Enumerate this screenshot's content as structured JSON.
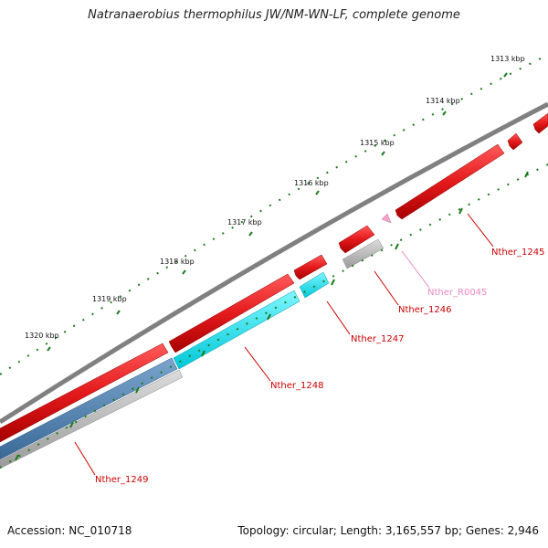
{
  "title": "Natranaerobius thermophilus JW/NM-WN-LF, complete genome",
  "footer": {
    "accession": "Accession: NC_010718",
    "summary": "Topology: circular; Length: 3,165,557 bp; Genes: 2,946"
  },
  "colors": {
    "backbone": "#808080",
    "gene_forward": "#e41a1c",
    "gene_cds": "#00e5ee",
    "gene_steel": "#4f81b0",
    "gene_gray": "#b8b8b8",
    "rna": "#f4a6c8",
    "tick_major": "#1e7b1e",
    "label_red": "#cc0000",
    "label_pink": "#e78ac3"
  },
  "ticks": [
    {
      "label": "1313 kbp"
    },
    {
      "label": "1314 kbp"
    },
    {
      "label": "1315 kbp"
    },
    {
      "label": "1316 kbp"
    },
    {
      "label": "1317 kbp"
    },
    {
      "label": "1318 kbp"
    },
    {
      "label": "1319 kbp"
    },
    {
      "label": "1320 kbp"
    }
  ],
  "genes": [
    {
      "label": "Nther_1245"
    },
    {
      "label": "Nther_R0045"
    },
    {
      "label": "Nther_1246"
    },
    {
      "label": "Nther_1247"
    },
    {
      "label": "Nther_1248"
    },
    {
      "label": "Nther_1249"
    }
  ]
}
